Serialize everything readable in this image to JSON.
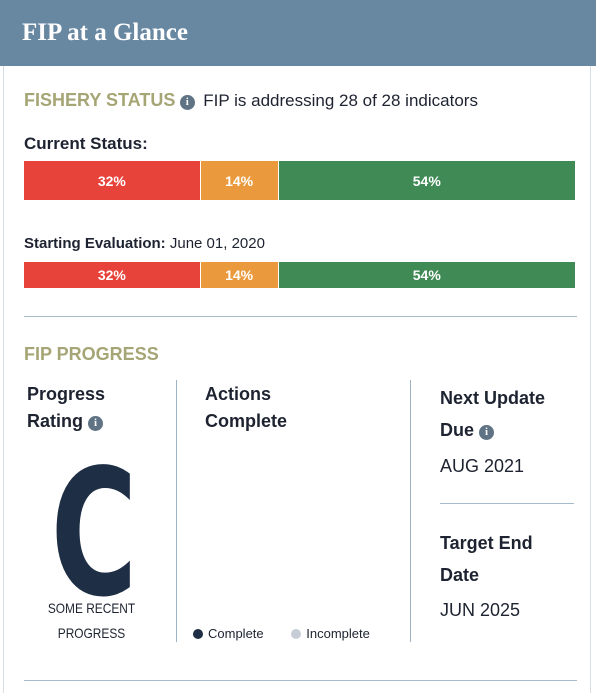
{
  "header": {
    "title": "FIP at a Glance"
  },
  "fishery_status": {
    "heading": "FISHERY STATUS",
    "summary": "FIP is addressing 28 of 28 indicators",
    "current": {
      "label": "Current Status:",
      "segments": [
        {
          "value": 32,
          "label": "32%",
          "color": "#e8433a"
        },
        {
          "value": 14,
          "label": "14%",
          "color": "#ea9a3c"
        },
        {
          "value": 54,
          "label": "54%",
          "color": "#3f8a55"
        }
      ]
    },
    "starting": {
      "label": "Starting Evaluation:",
      "date": "June 01, 2020",
      "segments": [
        {
          "value": 32,
          "label": "32%",
          "color": "#e8433a"
        },
        {
          "value": 14,
          "label": "14%",
          "color": "#ea9a3c"
        },
        {
          "value": 54,
          "label": "54%",
          "color": "#3f8a55"
        }
      ]
    }
  },
  "progress": {
    "heading": "FIP PROGRESS",
    "rating": {
      "label": "Progress Rating",
      "grade": "C",
      "description": "SOME RECENT PROGRESS"
    },
    "actions": {
      "label": "Actions Complete",
      "legend": [
        "Complete",
        "Incomplete"
      ]
    },
    "next_update": {
      "label": "Next Update Due",
      "value": "AUG 2021"
    },
    "target_end": {
      "label": "Target End Date",
      "value": "JUN 2025"
    }
  }
}
